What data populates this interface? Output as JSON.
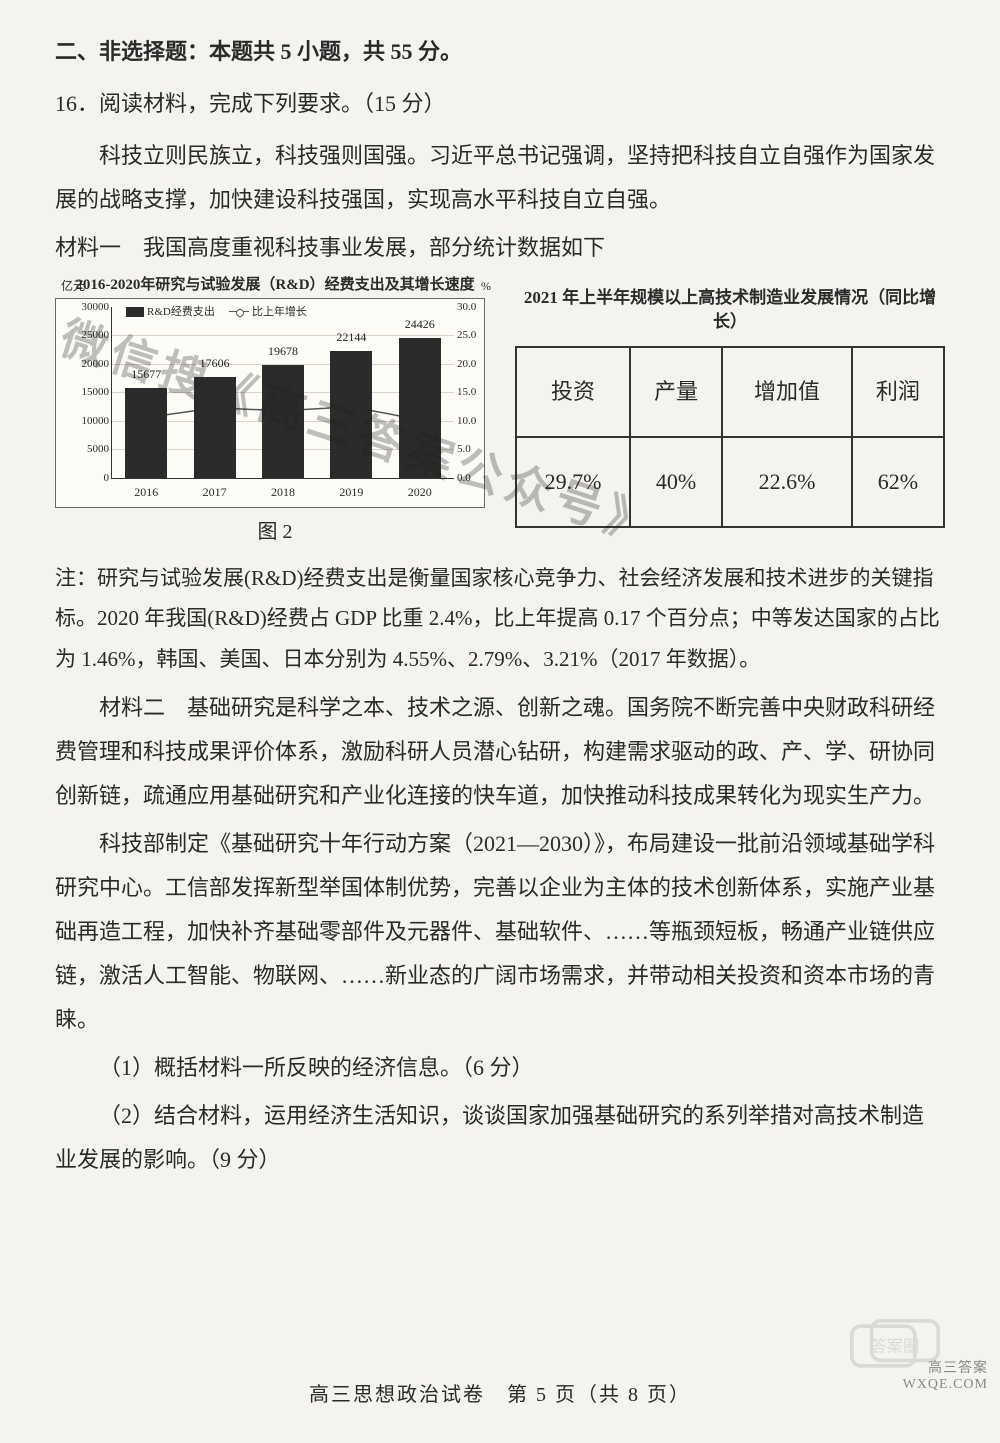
{
  "header": {
    "section": "二、非选择题：本题共 5 小题，共 55 分。",
    "q16": "16．阅读材料，完成下列要求。（15 分）"
  },
  "intro1": "科技立则民族立，科技强则国强。习近平总书记强调，坚持把科技自立自强作为国家发展的战略支撑，加快建设科技强国，实现高水平科技自立自强。",
  "material1_caption": "材料一　我国高度重视科技事业发展，部分统计数据如下",
  "chart": {
    "title": "2016-2020年研究与试验发展（R&D）经费支出及其增长速度",
    "yl_unit": "亿元",
    "yr_unit": "%",
    "legend_bar": "R&D经费支出",
    "legend_line": "比上年增长",
    "years": [
      "2016",
      "2017",
      "2018",
      "2019",
      "2020"
    ],
    "values": [
      15677,
      17606,
      19678,
      22144,
      24426
    ],
    "growth": [
      10.6,
      12.3,
      11.8,
      12.5,
      10.2
    ],
    "yl_max": 30000,
    "yl_step": 5000,
    "yr_max": 30.0,
    "yr_step": 5.0,
    "bar_color": "#2b2b2b",
    "grid_color": "#d8d4c8",
    "bg": "#fdfbf6",
    "caption": "图 2"
  },
  "right_table": {
    "title": "2021 年上半年规模以上高技术制造业发展情况（同比增长）",
    "headers": [
      "投资",
      "产量",
      "增加值",
      "利润"
    ],
    "values": [
      "29.7%",
      "40%",
      "22.6%",
      "62%"
    ]
  },
  "note": "注：研究与试验发展(R&D)经费支出是衡量国家核心竞争力、社会经济发展和技术进步的关键指标。2020 年我国(R&D)经费占 GDP 比重 2.4%，比上年提高 0.17 个百分点；中等发达国家的占比为 1.46%，韩国、美国、日本分别为 4.55%、2.79%、3.21%（2017 年数据）。",
  "material2_p1": "材料二　基础研究是科学之本、技术之源、创新之魂。国务院不断完善中央财政科研经费管理和科技成果评价体系，激励科研人员潜心钻研，构建需求驱动的政、产、学、研协同创新链，疏通应用基础研究和产业化连接的快车道，加快推动科技成果转化为现实生产力。",
  "material2_p2": "科技部制定《基础研究十年行动方案（2021—2030）》，布局建设一批前沿领域基础学科研究中心。工信部发挥新型举国体制优势，完善以企业为主体的技术创新体系，实施产业基础再造工程，加快补齐基础零部件及元器件、基础软件、……等瓶颈短板，畅通产业链供应链，激活人工智能、物联网、……新业态的广阔市场需求，并带动相关投资和资本市场的青睐。",
  "sub1": "（1）概括材料一所反映的经济信息。（6 分）",
  "sub2": "（2）结合材料，运用经济生活知识，谈谈国家加强基础研究的系列举措对高技术制造业发展的影响。（9 分）",
  "footer": "高三思想政治试卷　第 5 页（共 8 页）",
  "watermark_diag": "微信搜《高三答案公众号》",
  "watermark_small": "高三答案",
  "watermark_site": "WXQE.COM"
}
